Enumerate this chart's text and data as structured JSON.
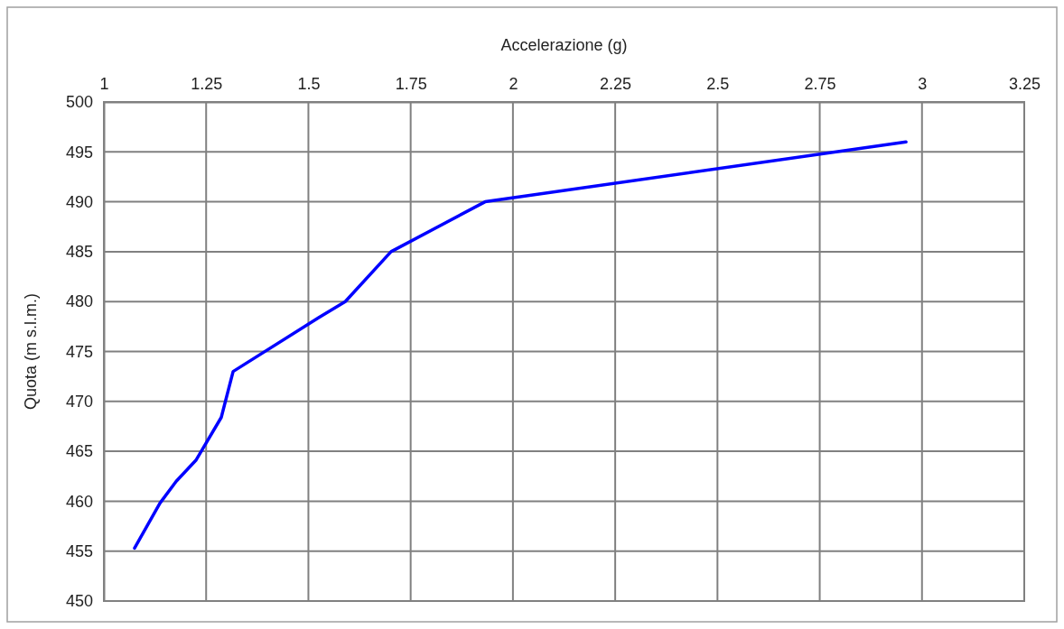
{
  "chart_data": {
    "type": "line",
    "xlabel": "Accelerazione (g)",
    "ylabel": "Quota (m s.l.m.)",
    "xlim": [
      1,
      3.25
    ],
    "xticks": [
      1,
      1.25,
      1.5,
      1.75,
      2,
      2.25,
      2.5,
      2.75,
      3,
      3.25
    ],
    "ylim": [
      450,
      500
    ],
    "yticks": [
      450,
      455,
      460,
      465,
      470,
      475,
      480,
      485,
      490,
      495,
      500
    ],
    "grid": true,
    "marker": "none",
    "line_style": "solid",
    "series": [
      {
        "color": "#0000ff",
        "x": [
          1.075,
          1.137,
          1.177,
          1.225,
          1.287,
          1.316,
          1.525,
          1.59,
          1.702,
          1.932,
          2.961
        ],
        "values": [
          455.3,
          459.8,
          462.0,
          464.1,
          468.4,
          473.0,
          478.4,
          480.0,
          485.0,
          490.0,
          496.0
        ]
      }
    ]
  }
}
